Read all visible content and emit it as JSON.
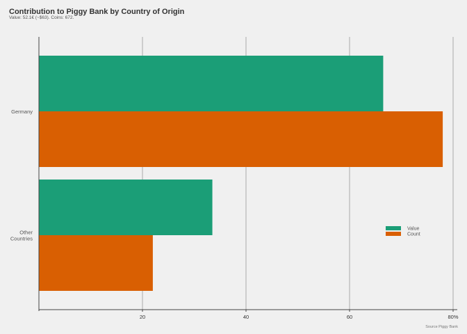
{
  "chart_data": {
    "type": "bar",
    "orientation": "horizontal",
    "title": "Contribution to Piggy Bank by Country of Origin",
    "subtitle": "Value: 52.1€ (~$63). Coins: 672.",
    "caption": "Source Piggy Bank",
    "categories": [
      "Germany",
      "Other Countries"
    ],
    "series": [
      {
        "name": "Value",
        "color": "#1b9e77",
        "values": [
          66.5,
          33.5
        ]
      },
      {
        "name": "Count",
        "color": "#d95f02",
        "values": [
          78,
          22
        ]
      }
    ],
    "x_ticks": [
      "20",
      "40",
      "60",
      "80%"
    ],
    "x_tick_values": [
      20,
      40,
      60,
      80
    ],
    "xlim": [
      0,
      80
    ],
    "grid": true,
    "legend_position": "right"
  }
}
